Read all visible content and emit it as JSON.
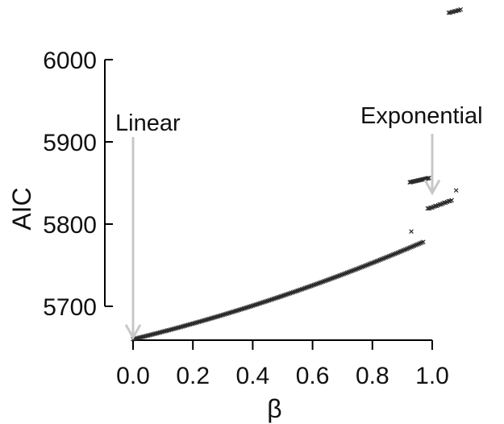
{
  "chart_data": {
    "type": "scatter",
    "xlabel": "β",
    "ylabel": "AIC",
    "xlim": [
      -0.01,
      1.1
    ],
    "ylim": [
      5657,
      6064
    ],
    "x_ticks": [
      "0.0",
      "0.2",
      "0.4",
      "0.6",
      "0.8",
      "1.0"
    ],
    "x_tick_values": [
      0.0,
      0.2,
      0.4,
      0.6,
      0.8,
      1.0
    ],
    "y_ticks": [
      "5700",
      "5800",
      "5900",
      "6000"
    ],
    "y_tick_values": [
      5700,
      5800,
      5900,
      6000
    ],
    "grid": false,
    "marker": "x",
    "segments": [
      {
        "x_start": 0.0,
        "x_end": 0.97,
        "a": 5660,
        "b": 88,
        "c": 35,
        "step": 0.005
      },
      {
        "x_start": 0.925,
        "x_end": 0.99,
        "a": 5774,
        "b": 83,
        "c": 0,
        "step": 0.004
      }
    ],
    "points": [
      {
        "x": 0.93,
        "y": 5791
      },
      {
        "x": 0.985,
        "y": 5819
      },
      {
        "x": 0.99,
        "y": 5819
      },
      {
        "x": 0.995,
        "y": 5820
      },
      {
        "x": 1.0,
        "y": 5820
      },
      {
        "x": 1.005,
        "y": 5821
      },
      {
        "x": 1.01,
        "y": 5822
      },
      {
        "x": 1.015,
        "y": 5822
      },
      {
        "x": 1.02,
        "y": 5823
      },
      {
        "x": 1.025,
        "y": 5824
      },
      {
        "x": 1.03,
        "y": 5824
      },
      {
        "x": 1.035,
        "y": 5825
      },
      {
        "x": 1.04,
        "y": 5826
      },
      {
        "x": 1.045,
        "y": 5826
      },
      {
        "x": 1.05,
        "y": 5827
      },
      {
        "x": 1.055,
        "y": 5828
      },
      {
        "x": 1.06,
        "y": 5828
      },
      {
        "x": 1.065,
        "y": 5829
      },
      {
        "x": 1.08,
        "y": 5841
      },
      {
        "x": 1.055,
        "y": 6057
      },
      {
        "x": 1.06,
        "y": 6057
      },
      {
        "x": 1.065,
        "y": 6058
      },
      {
        "x": 1.07,
        "y": 6058
      },
      {
        "x": 1.075,
        "y": 6059
      },
      {
        "x": 1.08,
        "y": 6059
      },
      {
        "x": 1.085,
        "y": 6060
      },
      {
        "x": 1.09,
        "y": 6060
      },
      {
        "x": 1.095,
        "y": 6061
      }
    ],
    "annotations": [
      {
        "text": "Linear",
        "x": 0.0,
        "y": 5660
      },
      {
        "text": "Exponential",
        "x": 1.0,
        "y": 5830
      }
    ]
  },
  "colors": {
    "markers": "#2a2a2a",
    "axes": "#000000",
    "annotation_arrow": "#c8c8c8"
  }
}
